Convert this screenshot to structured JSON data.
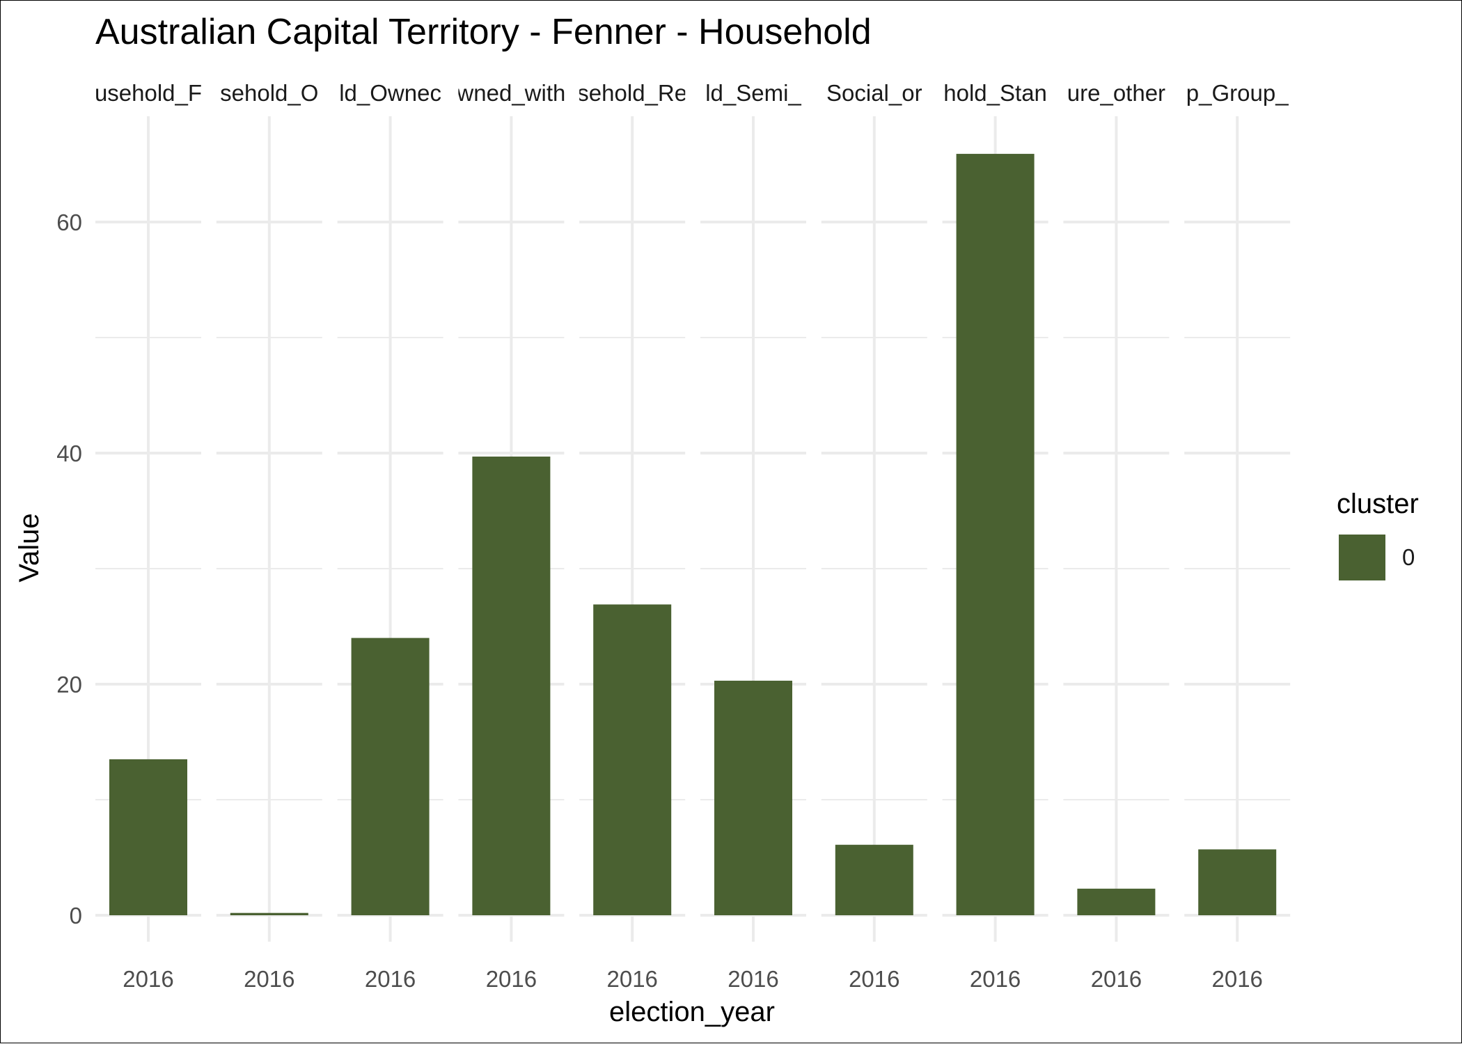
{
  "chart_data": {
    "type": "bar",
    "title": "Australian Capital Territory - Fenner - Household",
    "xlabel": "election_year",
    "ylabel": "Value",
    "facets": [
      "usehold_F",
      "sehold_O",
      "ld_Ownec",
      "wned_with",
      "sehold_Re",
      "ld_Semi_",
      "Social_or",
      "hold_Stan",
      "ure_other",
      "p_Group_"
    ],
    "categories": [
      "2016",
      "2016",
      "2016",
      "2016",
      "2016",
      "2016",
      "2016",
      "2016",
      "2016",
      "2016"
    ],
    "series": [
      {
        "name": "0",
        "values": [
          13.5,
          0.2,
          24.0,
          39.7,
          26.9,
          20.3,
          6.1,
          65.9,
          2.3,
          5.7
        ]
      }
    ],
    "ylim": [
      0,
      69
    ],
    "yticks": [
      0,
      20,
      40,
      60
    ],
    "grid": true,
    "legend": {
      "title": "cluster",
      "position": "right",
      "entries": [
        "0"
      ]
    },
    "colors": {
      "bar": "#4a6131",
      "grid": "#ebebeb"
    }
  }
}
